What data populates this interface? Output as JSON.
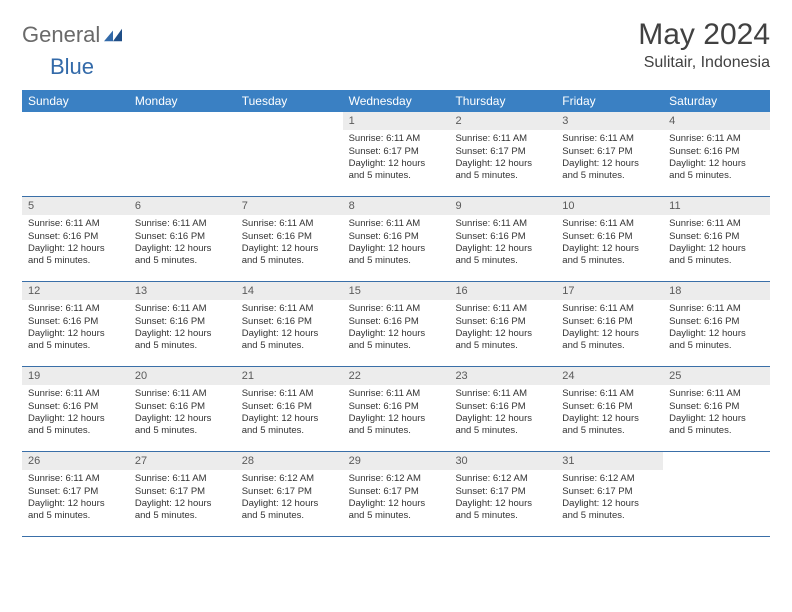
{
  "logo": {
    "text1": "General",
    "text2": "Blue"
  },
  "title": "May 2024",
  "location": "Sulitair, Indonesia",
  "weekdays": [
    "Sunday",
    "Monday",
    "Tuesday",
    "Wednesday",
    "Thursday",
    "Friday",
    "Saturday"
  ],
  "colors": {
    "header_bg": "#3a80c3",
    "row_border": "#3a6fa8",
    "daynum_bg": "#ececec",
    "logo_gray": "#6a6a6a",
    "logo_blue": "#336aa9"
  },
  "weeks": [
    [
      {
        "n": "",
        "empty": true
      },
      {
        "n": "",
        "empty": true
      },
      {
        "n": "",
        "empty": true
      },
      {
        "n": "1",
        "sr": "6:11 AM",
        "ss": "6:17 PM",
        "dl": "12 hours and 5 minutes."
      },
      {
        "n": "2",
        "sr": "6:11 AM",
        "ss": "6:17 PM",
        "dl": "12 hours and 5 minutes."
      },
      {
        "n": "3",
        "sr": "6:11 AM",
        "ss": "6:17 PM",
        "dl": "12 hours and 5 minutes."
      },
      {
        "n": "4",
        "sr": "6:11 AM",
        "ss": "6:16 PM",
        "dl": "12 hours and 5 minutes."
      }
    ],
    [
      {
        "n": "5",
        "sr": "6:11 AM",
        "ss": "6:16 PM",
        "dl": "12 hours and 5 minutes."
      },
      {
        "n": "6",
        "sr": "6:11 AM",
        "ss": "6:16 PM",
        "dl": "12 hours and 5 minutes."
      },
      {
        "n": "7",
        "sr": "6:11 AM",
        "ss": "6:16 PM",
        "dl": "12 hours and 5 minutes."
      },
      {
        "n": "8",
        "sr": "6:11 AM",
        "ss": "6:16 PM",
        "dl": "12 hours and 5 minutes."
      },
      {
        "n": "9",
        "sr": "6:11 AM",
        "ss": "6:16 PM",
        "dl": "12 hours and 5 minutes."
      },
      {
        "n": "10",
        "sr": "6:11 AM",
        "ss": "6:16 PM",
        "dl": "12 hours and 5 minutes."
      },
      {
        "n": "11",
        "sr": "6:11 AM",
        "ss": "6:16 PM",
        "dl": "12 hours and 5 minutes."
      }
    ],
    [
      {
        "n": "12",
        "sr": "6:11 AM",
        "ss": "6:16 PM",
        "dl": "12 hours and 5 minutes."
      },
      {
        "n": "13",
        "sr": "6:11 AM",
        "ss": "6:16 PM",
        "dl": "12 hours and 5 minutes."
      },
      {
        "n": "14",
        "sr": "6:11 AM",
        "ss": "6:16 PM",
        "dl": "12 hours and 5 minutes."
      },
      {
        "n": "15",
        "sr": "6:11 AM",
        "ss": "6:16 PM",
        "dl": "12 hours and 5 minutes."
      },
      {
        "n": "16",
        "sr": "6:11 AM",
        "ss": "6:16 PM",
        "dl": "12 hours and 5 minutes."
      },
      {
        "n": "17",
        "sr": "6:11 AM",
        "ss": "6:16 PM",
        "dl": "12 hours and 5 minutes."
      },
      {
        "n": "18",
        "sr": "6:11 AM",
        "ss": "6:16 PM",
        "dl": "12 hours and 5 minutes."
      }
    ],
    [
      {
        "n": "19",
        "sr": "6:11 AM",
        "ss": "6:16 PM",
        "dl": "12 hours and 5 minutes."
      },
      {
        "n": "20",
        "sr": "6:11 AM",
        "ss": "6:16 PM",
        "dl": "12 hours and 5 minutes."
      },
      {
        "n": "21",
        "sr": "6:11 AM",
        "ss": "6:16 PM",
        "dl": "12 hours and 5 minutes."
      },
      {
        "n": "22",
        "sr": "6:11 AM",
        "ss": "6:16 PM",
        "dl": "12 hours and 5 minutes."
      },
      {
        "n": "23",
        "sr": "6:11 AM",
        "ss": "6:16 PM",
        "dl": "12 hours and 5 minutes."
      },
      {
        "n": "24",
        "sr": "6:11 AM",
        "ss": "6:16 PM",
        "dl": "12 hours and 5 minutes."
      },
      {
        "n": "25",
        "sr": "6:11 AM",
        "ss": "6:16 PM",
        "dl": "12 hours and 5 minutes."
      }
    ],
    [
      {
        "n": "26",
        "sr": "6:11 AM",
        "ss": "6:17 PM",
        "dl": "12 hours and 5 minutes."
      },
      {
        "n": "27",
        "sr": "6:11 AM",
        "ss": "6:17 PM",
        "dl": "12 hours and 5 minutes."
      },
      {
        "n": "28",
        "sr": "6:12 AM",
        "ss": "6:17 PM",
        "dl": "12 hours and 5 minutes."
      },
      {
        "n": "29",
        "sr": "6:12 AM",
        "ss": "6:17 PM",
        "dl": "12 hours and 5 minutes."
      },
      {
        "n": "30",
        "sr": "6:12 AM",
        "ss": "6:17 PM",
        "dl": "12 hours and 5 minutes."
      },
      {
        "n": "31",
        "sr": "6:12 AM",
        "ss": "6:17 PM",
        "dl": "12 hours and 5 minutes."
      },
      {
        "n": "",
        "empty": true
      }
    ]
  ],
  "labels": {
    "sunrise": "Sunrise:",
    "sunset": "Sunset:",
    "daylight": "Daylight:"
  }
}
